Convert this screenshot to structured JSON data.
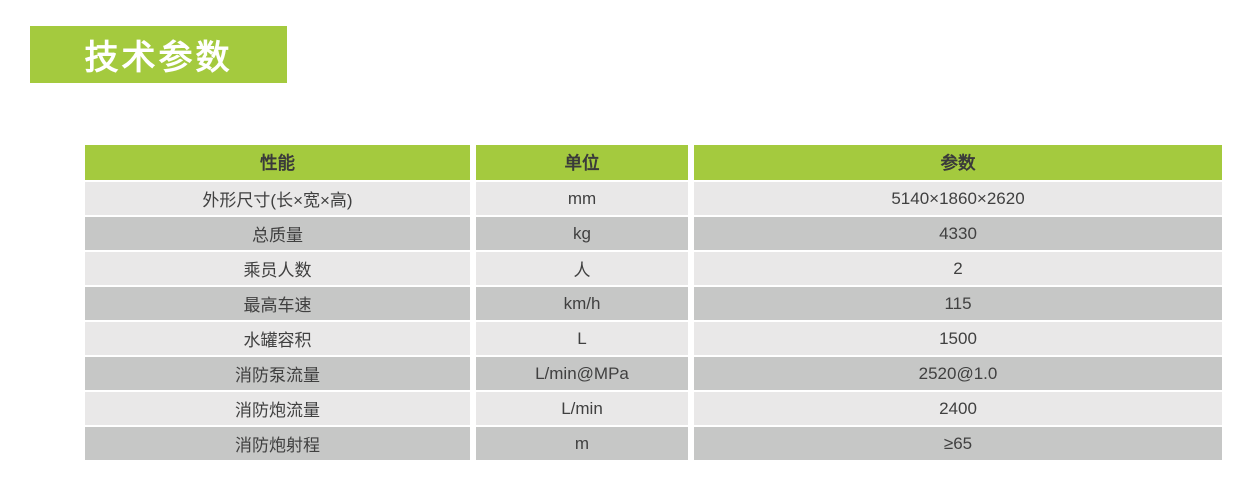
{
  "title_badge": {
    "label": "技术参数"
  },
  "colors": {
    "green": "#a4ca3e",
    "row_light": "#e9e8e8",
    "row_dark": "#c6c7c6",
    "header_text": "#3a3a3a",
    "cell_text": "#404040",
    "badge_text": "#ffffff"
  },
  "table": {
    "header": {
      "columns": [
        "性能",
        "单位",
        "参数"
      ]
    },
    "rows": [
      {
        "name": "外形尺寸(长×宽×高)",
        "unit": "mm",
        "value": "5140×1860×2620"
      },
      {
        "name": "总质量",
        "unit": "kg",
        "value": "4330"
      },
      {
        "name": "乘员人数",
        "unit": "人",
        "value": "2"
      },
      {
        "name": "最高车速",
        "unit": "km/h",
        "value": "115"
      },
      {
        "name": "水罐容积",
        "unit": "L",
        "value": "1500"
      },
      {
        "name": "消防泵流量",
        "unit": "L/min@MPa",
        "value": "2520@1.0"
      },
      {
        "name": "消防炮流量",
        "unit": "L/min",
        "value": "2400"
      },
      {
        "name": "消防炮射程",
        "unit": "m",
        "value": "≥65"
      }
    ]
  }
}
